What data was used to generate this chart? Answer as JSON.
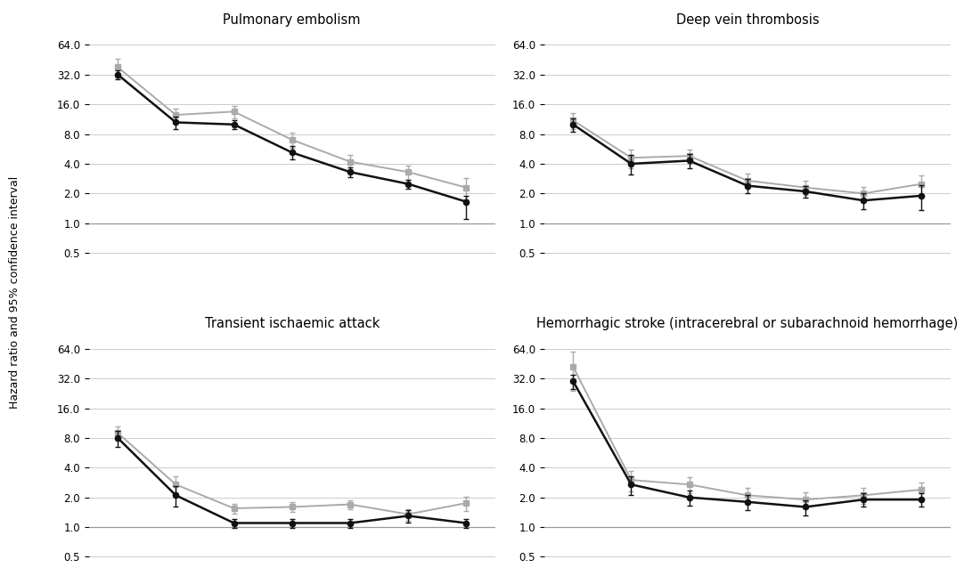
{
  "subplots": [
    {
      "title": "Pulmonary embolism",
      "black": {
        "y": [
          32.0,
          10.5,
          10.0,
          5.2,
          3.3,
          2.5,
          1.65
        ],
        "yerr_lo": [
          3.0,
          1.5,
          1.0,
          0.8,
          0.4,
          0.25,
          0.55
        ],
        "yerr_hi": [
          3.0,
          1.5,
          1.0,
          0.8,
          0.4,
          0.25,
          0.25
        ]
      },
      "gray": {
        "y": [
          38.0,
          12.5,
          13.5,
          7.0,
          4.2,
          3.3,
          2.3
        ],
        "yerr_lo": [
          8.0,
          2.0,
          2.0,
          1.2,
          0.7,
          0.55,
          0.55
        ],
        "yerr_hi": [
          8.0,
          2.0,
          2.0,
          1.2,
          0.7,
          0.55,
          0.55
        ]
      }
    },
    {
      "title": "Deep vein thrombosis",
      "black": {
        "y": [
          10.0,
          4.0,
          4.3,
          2.4,
          2.1,
          1.7,
          1.9
        ],
        "yerr_lo": [
          1.5,
          0.9,
          0.7,
          0.4,
          0.3,
          0.3,
          0.55
        ],
        "yerr_hi": [
          1.5,
          0.9,
          0.7,
          0.4,
          0.3,
          0.3,
          0.55
        ]
      },
      "gray": {
        "y": [
          11.0,
          4.6,
          4.8,
          2.7,
          2.3,
          2.0,
          2.5
        ],
        "yerr_lo": [
          2.0,
          1.0,
          0.8,
          0.45,
          0.38,
          0.35,
          0.55
        ],
        "yerr_hi": [
          2.0,
          1.0,
          0.8,
          0.45,
          0.38,
          0.35,
          0.55
        ]
      }
    },
    {
      "title": "Transient ischaemic attack",
      "black": {
        "y": [
          8.0,
          2.1,
          1.1,
          1.1,
          1.1,
          1.3,
          1.1
        ],
        "yerr_lo": [
          1.5,
          0.5,
          0.12,
          0.12,
          0.12,
          0.18,
          0.12
        ],
        "yerr_hi": [
          1.5,
          0.5,
          0.12,
          0.12,
          0.12,
          0.18,
          0.12
        ]
      },
      "gray": {
        "y": [
          9.0,
          2.7,
          1.55,
          1.6,
          1.7,
          1.35,
          1.75
        ],
        "yerr_lo": [
          1.5,
          0.6,
          0.18,
          0.18,
          0.18,
          0.18,
          0.3
        ],
        "yerr_hi": [
          1.5,
          0.6,
          0.18,
          0.18,
          0.18,
          0.18,
          0.3
        ]
      }
    },
    {
      "title": "Hemorrhagic stroke (intracerebral or subarachnoid hemorrhage)",
      "black": {
        "y": [
          30.0,
          2.7,
          2.0,
          1.8,
          1.6,
          1.9,
          1.9
        ],
        "yerr_lo": [
          5.0,
          0.6,
          0.35,
          0.3,
          0.28,
          0.3,
          0.3
        ],
        "yerr_hi": [
          5.0,
          0.6,
          0.35,
          0.3,
          0.28,
          0.3,
          0.3
        ]
      },
      "gray": {
        "y": [
          42.0,
          3.0,
          2.7,
          2.1,
          1.9,
          2.1,
          2.4
        ],
        "yerr_lo": [
          18.0,
          0.7,
          0.5,
          0.38,
          0.35,
          0.38,
          0.45
        ],
        "yerr_hi": [
          18.0,
          0.7,
          0.5,
          0.38,
          0.35,
          0.38,
          0.45
        ]
      }
    }
  ],
  "x": [
    1,
    2,
    3,
    4,
    5,
    6,
    7
  ],
  "yticks": [
    0.5,
    1.0,
    2.0,
    4.0,
    8.0,
    16.0,
    32.0,
    64.0
  ],
  "ytick_labels": [
    "0.5",
    "1.0",
    "2.0",
    "4.0",
    "8.0",
    "16.0",
    "32.0",
    "64.0"
  ],
  "ymin": 0.42,
  "ymax": 90.0,
  "ylabel": "Hazard ratio and 95% confidence interval",
  "black_color": "#111111",
  "gray_color": "#aaaaaa",
  "background_color": "#ffffff",
  "grid_color": "#cccccc",
  "title_fontsize": 10.5,
  "label_fontsize": 9,
  "tick_fontsize": 8.5
}
